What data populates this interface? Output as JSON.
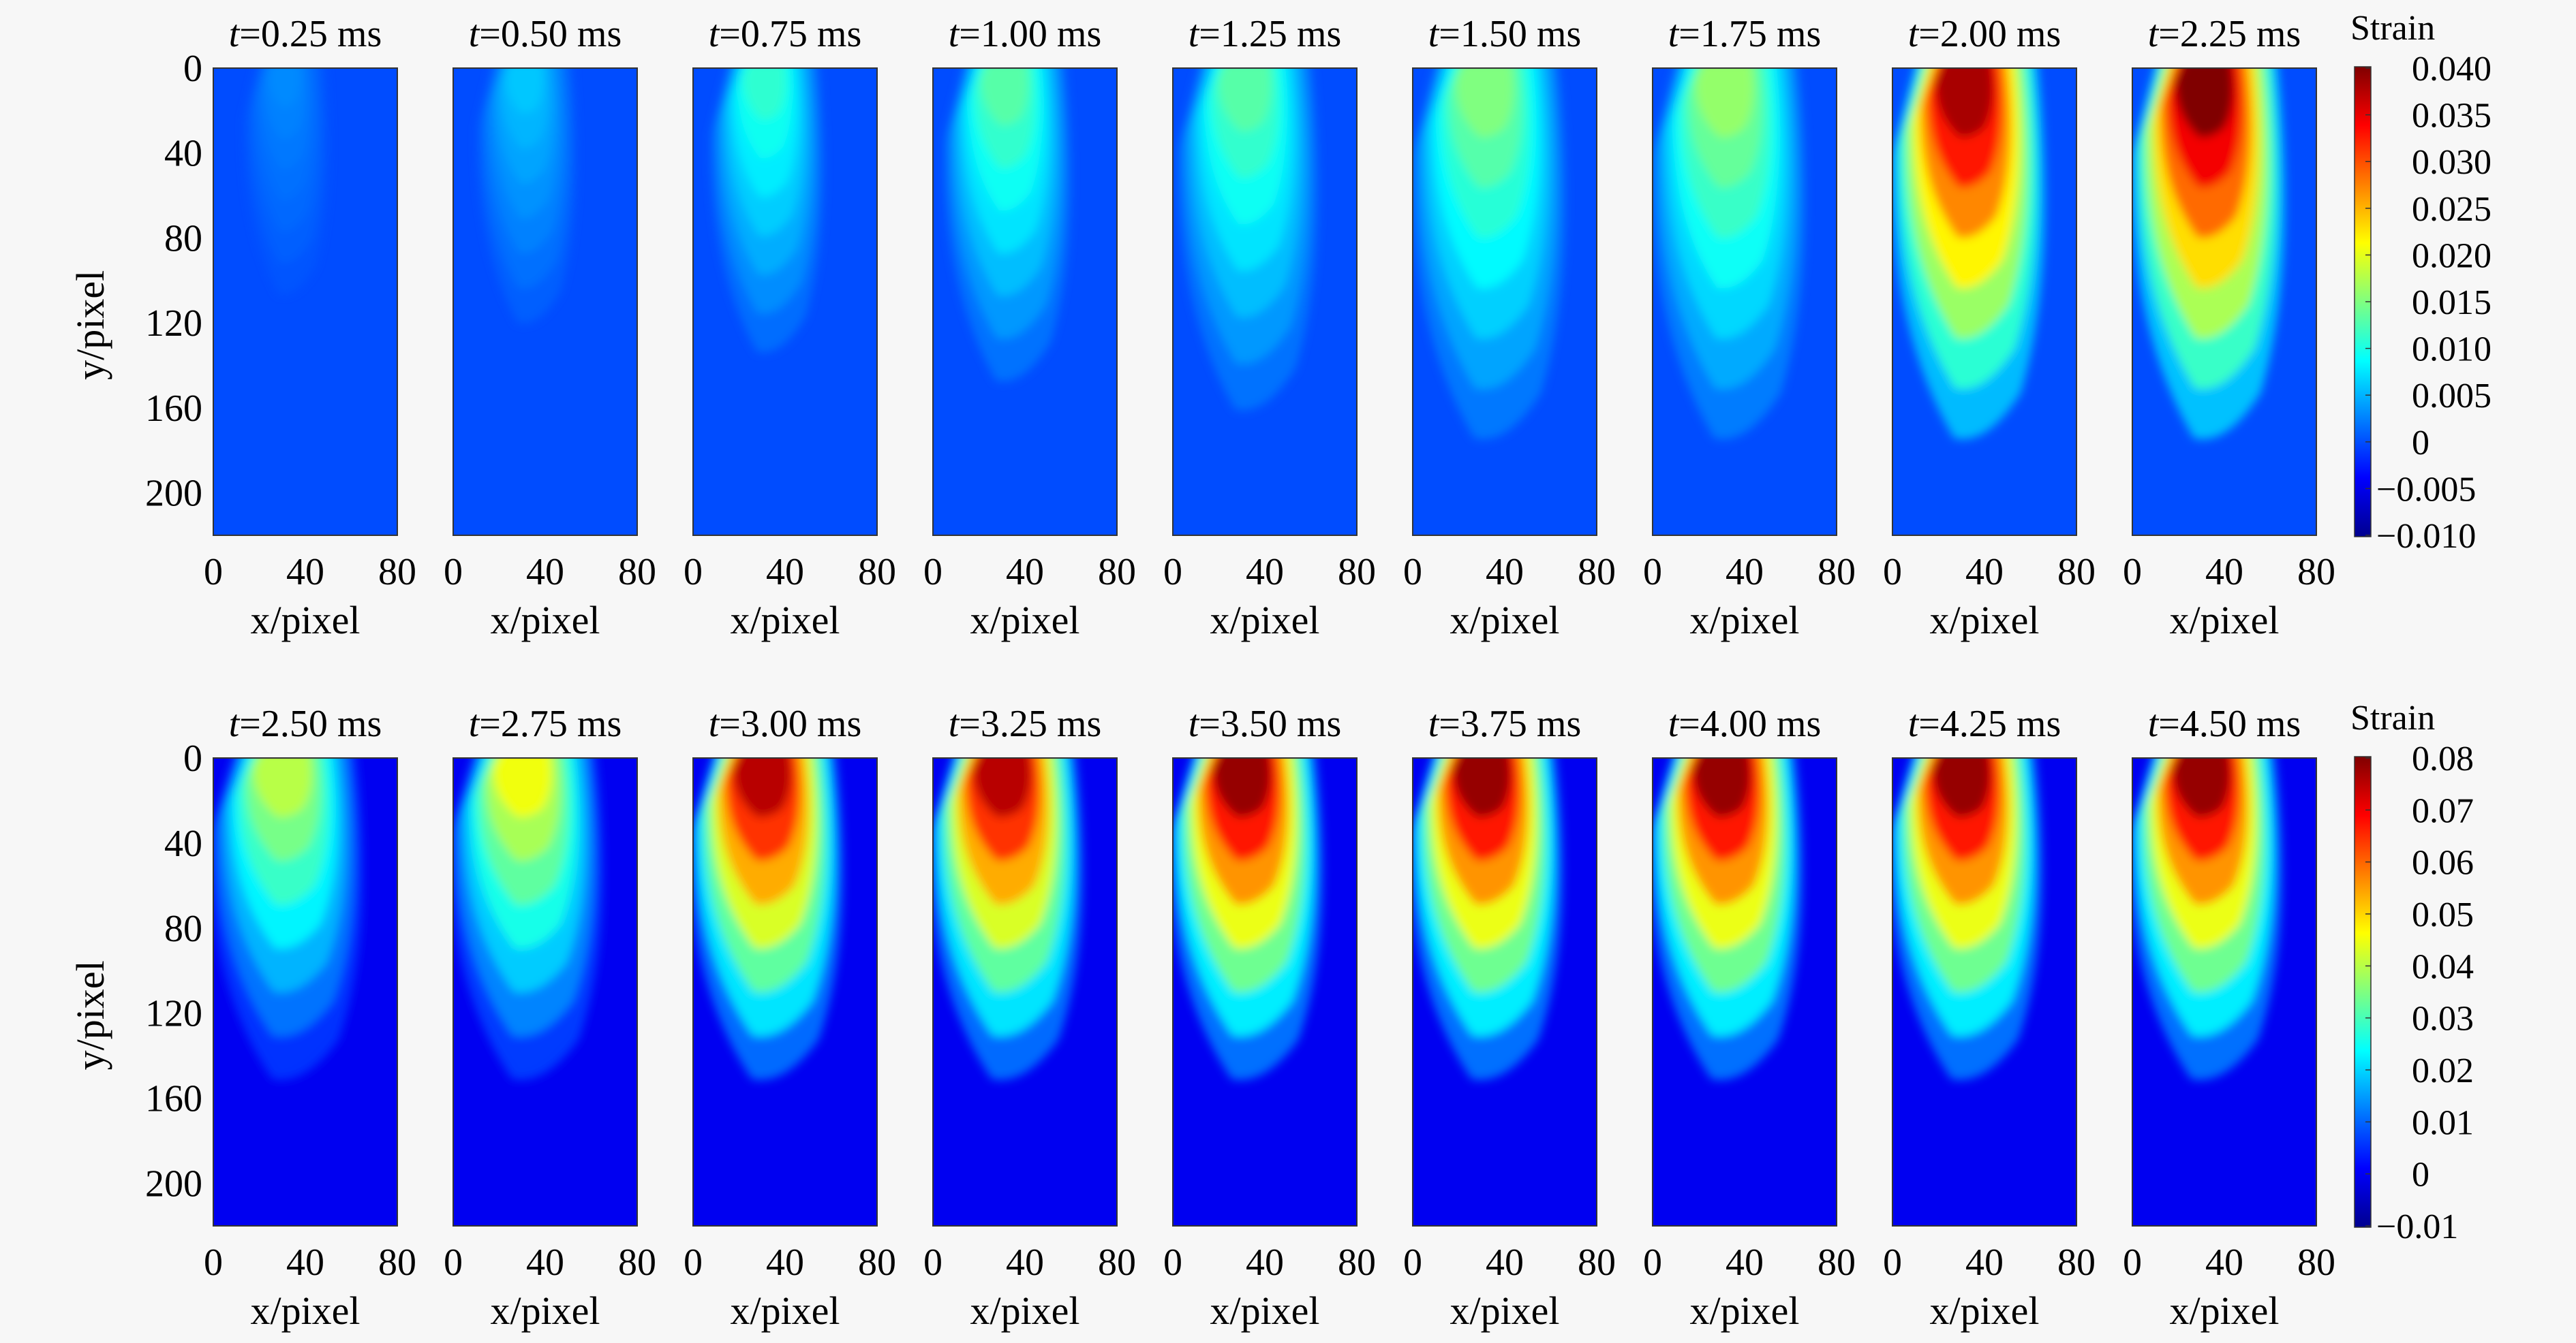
{
  "chart_data": [
    {
      "type": "heatmap",
      "row": "top",
      "time_unit": "ms",
      "times": [
        "0.25",
        "0.50",
        "0.75",
        "1.00",
        "1.25",
        "1.50",
        "1.75",
        "2.00",
        "2.25"
      ],
      "peak_strain": [
        0.003,
        0.006,
        0.011,
        0.013,
        0.013,
        0.015,
        0.016,
        0.038,
        0.04
      ],
      "ylabel": "y/pixel",
      "xlabel": "x/pixel",
      "xticks": [
        "0",
        "40",
        "80"
      ],
      "yticks": [
        "0",
        "40",
        "80",
        "120",
        "160",
        "200"
      ],
      "xlim": [
        0,
        80
      ],
      "ylim": [
        0,
        220
      ],
      "colorbar": {
        "title": "Strain",
        "ticks": [
          "0.040",
          "0.035",
          "0.030",
          "0.025",
          "0.020",
          "0.015",
          "0.010",
          "0.005",
          "0",
          "−0.005",
          "−0.010"
        ],
        "range": [
          -0.01,
          0.04
        ],
        "colormap": "jet"
      }
    },
    {
      "type": "heatmap",
      "row": "bottom",
      "time_unit": "ms",
      "times": [
        "2.50",
        "2.75",
        "3.00",
        "3.25",
        "3.50",
        "3.75",
        "4.00",
        "4.25",
        "4.50"
      ],
      "peak_strain": [
        0.04,
        0.045,
        0.075,
        0.075,
        0.078,
        0.078,
        0.078,
        0.078,
        0.078
      ],
      "ylabel": "y/pixel",
      "xlabel": "x/pixel",
      "xticks": [
        "0",
        "40",
        "80"
      ],
      "yticks": [
        "0",
        "40",
        "80",
        "120",
        "160",
        "200"
      ],
      "xlim": [
        0,
        80
      ],
      "ylim": [
        0,
        220
      ],
      "colorbar": {
        "title": "Strain",
        "ticks": [
          "0.08",
          "0.07",
          "0.06",
          "0.05",
          "0.04",
          "0.03",
          "0.02",
          "0.01",
          "0",
          "−0.01"
        ],
        "range": [
          -0.01,
          0.08
        ],
        "colormap": "jet"
      }
    }
  ]
}
